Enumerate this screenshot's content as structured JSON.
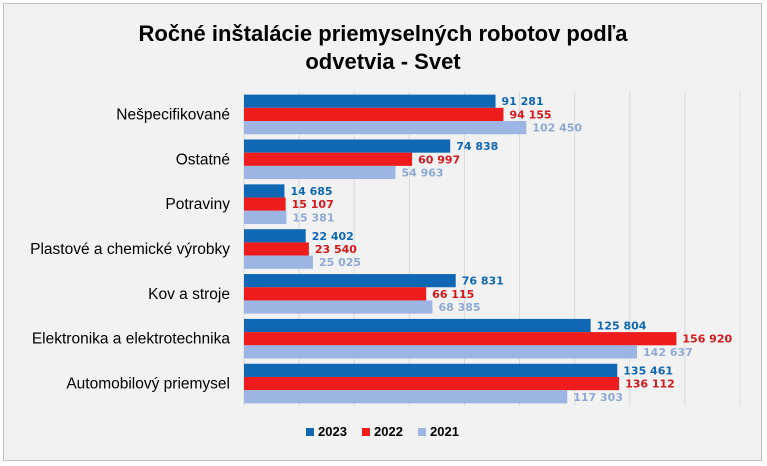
{
  "chart_data": {
    "type": "bar",
    "orientation": "horizontal",
    "title_lines": [
      "Ročné inštalácie priemyselných robotov podľa",
      "odvetvia - Svet"
    ],
    "categories": [
      "Nešpecifikované",
      "Ostatné",
      "Potraviny",
      "Plastové a chemické výrobky",
      "Kov a stroje",
      "Elektronika a elektrotechnika",
      "Automobilový priemysel"
    ],
    "series": [
      {
        "name": "2023",
        "color": "#1068b5",
        "label_color": "#1068b5",
        "values": [
          91281,
          74838,
          14685,
          22402,
          76831,
          125804,
          135461
        ],
        "labels": [
          "91 281",
          "74 838",
          "14 685",
          "22 402",
          "76 831",
          "125 804",
          "135 461"
        ]
      },
      {
        "name": "2022",
        "color": "#ee1c1c",
        "label_color": "#d6181c",
        "values": [
          94155,
          60997,
          15107,
          23540,
          66115,
          156920,
          136112
        ],
        "labels": [
          "94 155",
          "60 997",
          "15 107",
          "23 540",
          "66 115",
          "156 920",
          "136 112"
        ]
      },
      {
        "name": "2021",
        "color": "#9cb5e3",
        "label_color": "#8ea9d6",
        "values": [
          102450,
          54963,
          15381,
          25025,
          68385,
          142637,
          117303
        ],
        "labels": [
          "102 450",
          "54 963",
          "15 381",
          "25 025",
          "68 385",
          "142 637",
          "117 303"
        ]
      }
    ],
    "xlim": [
      0,
      180000
    ],
    "grid": true,
    "xaxis_visible": false,
    "legend_position": "bottom"
  }
}
